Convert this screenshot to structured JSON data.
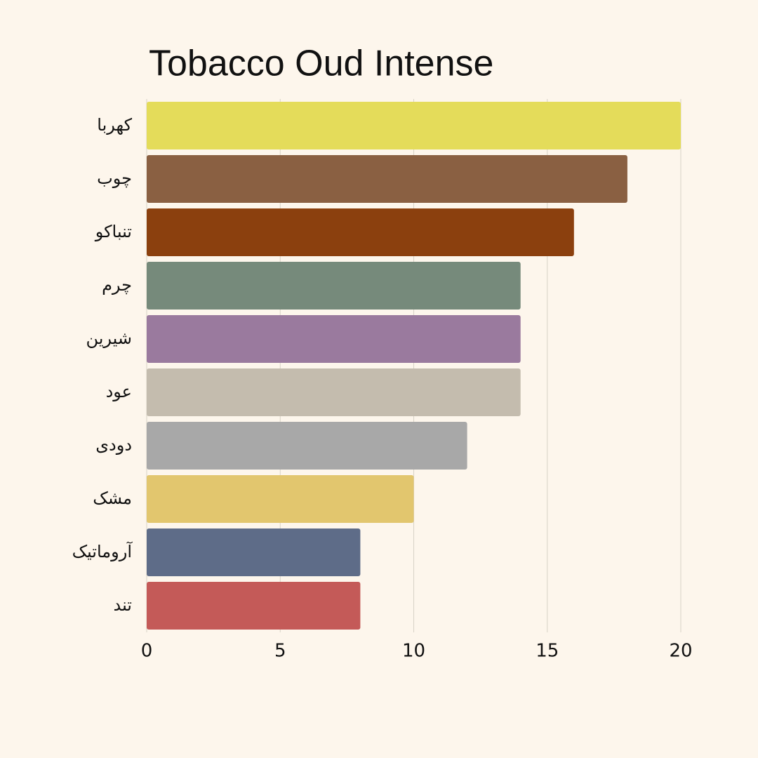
{
  "chart_data": {
    "type": "bar",
    "orientation": "horizontal",
    "title": "Tobacco Oud Intense",
    "categories": [
      "کهربا",
      "چوب",
      "تنباکو",
      "چرم",
      "شیرین",
      "عود",
      "دودی",
      "مشک",
      "آروماتیک",
      "تند"
    ],
    "values": [
      20,
      18,
      16,
      14,
      14,
      14,
      12,
      10,
      8,
      8
    ],
    "colors": [
      "#e4dc5a",
      "#8a6042",
      "#8b400e",
      "#768a7b",
      "#9a7a9e",
      "#c4bcae",
      "#a8a8a8",
      "#e2c66e",
      "#5e6c88",
      "#c45a58"
    ],
    "xlim": [
      0,
      20
    ],
    "xticks": [
      0,
      5,
      10,
      15,
      20
    ],
    "grid": true
  }
}
